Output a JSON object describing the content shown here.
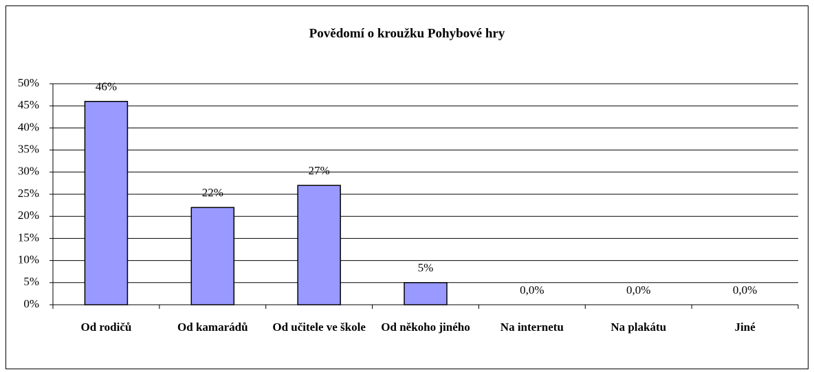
{
  "chart_data": {
    "type": "bar",
    "title": "Povědomí o kroužku Pohybové hry",
    "categories": [
      "Od rodičů",
      "Od kamarádů",
      "Od učitele ve škole",
      "Od někoho jiného",
      "Na internetu",
      "Na plakátu",
      "Jiné"
    ],
    "values": [
      46,
      22,
      27,
      5,
      0,
      0,
      0
    ],
    "value_labels": [
      "46%",
      "22%",
      "27%",
      "5%",
      "0,0%",
      "0,0%",
      "0,0%"
    ],
    "color": "#9999ff",
    "ylim": [
      0,
      50
    ],
    "yticks": [
      {
        "value": 0,
        "label": "0%"
      },
      {
        "value": 5,
        "label": "5%"
      },
      {
        "value": 10,
        "label": "10%"
      },
      {
        "value": 15,
        "label": "15%"
      },
      {
        "value": 20,
        "label": "20%"
      },
      {
        "value": 25,
        "label": "25%"
      },
      {
        "value": 30,
        "label": "30%"
      },
      {
        "value": 35,
        "label": "35%"
      },
      {
        "value": 40,
        "label": "40%"
      },
      {
        "value": 45,
        "label": "45%"
      },
      {
        "value": 50,
        "label": "50%"
      }
    ],
    "grid": true
  }
}
